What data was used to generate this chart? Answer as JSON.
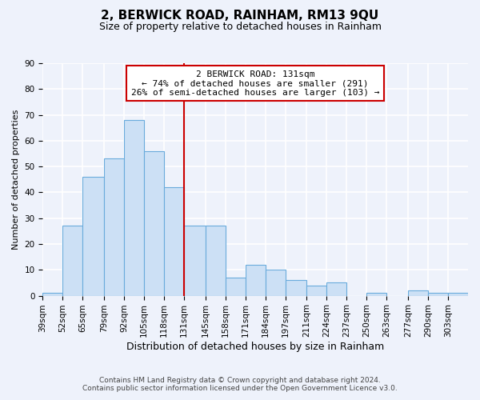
{
  "title": "2, BERWICK ROAD, RAINHAM, RM13 9QU",
  "subtitle": "Size of property relative to detached houses in Rainham",
  "xlabel": "Distribution of detached houses by size in Rainham",
  "ylabel": "Number of detached properties",
  "bin_labels": [
    "39sqm",
    "52sqm",
    "65sqm",
    "79sqm",
    "92sqm",
    "105sqm",
    "118sqm",
    "131sqm",
    "145sqm",
    "158sqm",
    "171sqm",
    "184sqm",
    "197sqm",
    "211sqm",
    "224sqm",
    "237sqm",
    "250sqm",
    "263sqm",
    "277sqm",
    "290sqm",
    "303sqm"
  ],
  "bin_edges": [
    39,
    52,
    65,
    79,
    92,
    105,
    118,
    131,
    145,
    158,
    171,
    184,
    197,
    211,
    224,
    237,
    250,
    263,
    277,
    290,
    303,
    316
  ],
  "bar_heights": [
    1,
    27,
    46,
    53,
    68,
    56,
    42,
    27,
    27,
    7,
    12,
    10,
    6,
    4,
    5,
    0,
    1,
    0,
    2,
    1,
    1
  ],
  "bar_color": "#cce0f5",
  "bar_edge_color": "#6aabdc",
  "vline_x_index": 7,
  "vline_color": "#cc0000",
  "annotation_title": "2 BERWICK ROAD: 131sqm",
  "annotation_line1": "← 74% of detached houses are smaller (291)",
  "annotation_line2": "26% of semi-detached houses are larger (103) →",
  "annotation_box_edge_color": "#cc0000",
  "ylim": [
    0,
    90
  ],
  "yticks": [
    0,
    10,
    20,
    30,
    40,
    50,
    60,
    70,
    80,
    90
  ],
  "footer1": "Contains HM Land Registry data © Crown copyright and database right 2024.",
  "footer2": "Contains public sector information licensed under the Open Government Licence v3.0.",
  "background_color": "#eef2fb",
  "grid_color": "#ffffff",
  "title_fontsize": 11,
  "subtitle_fontsize": 9,
  "xlabel_fontsize": 9,
  "ylabel_fontsize": 8,
  "tick_fontsize": 7.5,
  "footer_fontsize": 6.5
}
